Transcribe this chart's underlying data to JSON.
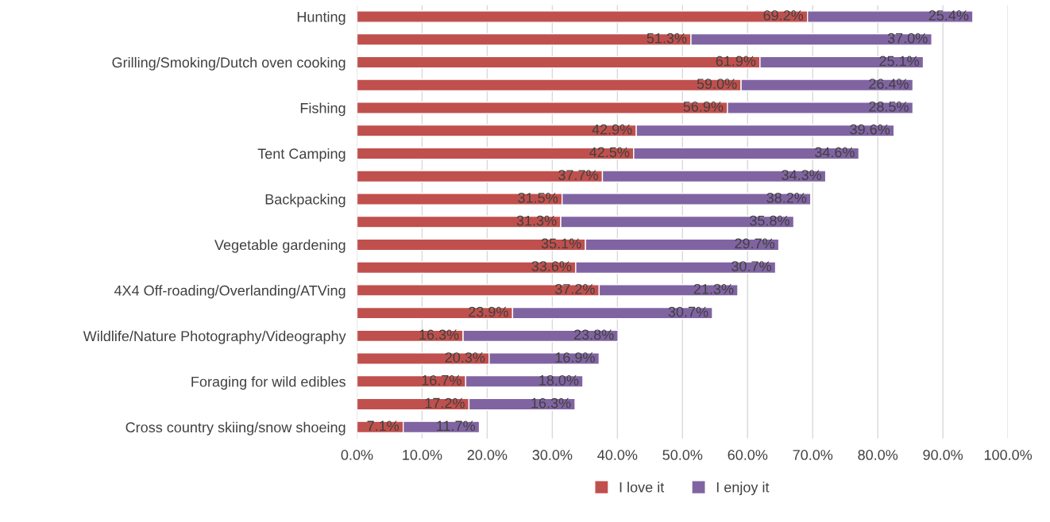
{
  "chart_data": {
    "type": "bar",
    "orientation": "horizontal",
    "stacked": true,
    "categories": [
      "Hunting",
      null,
      "Grilling/Smoking/Dutch oven cooking",
      null,
      "Fishing",
      null,
      "Tent Camping",
      null,
      "Backpacking",
      null,
      "Vegetable gardening",
      null,
      "4X4 Off-roading/Overlanding/ATVing",
      null,
      "Wildlife/Nature Photography/Videography",
      null,
      "Foraging for wild edibles",
      null,
      "Cross country skiing/snow shoeing"
    ],
    "series": [
      {
        "name": "I love it",
        "color": "#c0504d",
        "values": [
          69.2,
          51.3,
          61.9,
          59.0,
          56.9,
          42.9,
          42.5,
          37.7,
          31.5,
          31.3,
          35.1,
          33.6,
          37.2,
          23.9,
          16.3,
          20.3,
          16.7,
          17.2,
          7.1
        ],
        "value_labels": [
          "69.2%",
          "51.3%",
          "61.9%",
          "59.0%",
          "56.9%",
          "42.9%",
          "42.5%",
          "37.7%",
          "31.5%",
          "31.3%",
          "35.1%",
          "33.6%",
          "37.2%",
          "23.9%",
          "16.3%",
          "20.3%",
          "16.7%",
          "17.2%",
          "7.1%"
        ]
      },
      {
        "name": "I enjoy it",
        "color": "#8064a2",
        "values": [
          25.4,
          37.0,
          25.1,
          26.4,
          28.5,
          39.6,
          34.6,
          34.3,
          38.2,
          35.8,
          29.7,
          30.7,
          21.3,
          30.7,
          23.8,
          16.9,
          18.0,
          16.3,
          11.7
        ],
        "value_labels": [
          "25.4%",
          "37.0%",
          "25.1%",
          "26.4%",
          "28.5%",
          "39.6%",
          "34.6%",
          "34.3%",
          "38.2%",
          "35.8%",
          "29.7%",
          "30.7%",
          "21.3%",
          "30.7%",
          "23.8%",
          "16.9%",
          "18.0%",
          "16.3%",
          "11.7%"
        ]
      }
    ],
    "xlim": [
      0,
      100
    ],
    "xticks": [
      {
        "value": 0,
        "label": "0.0%"
      },
      {
        "value": 10,
        "label": "10.0%"
      },
      {
        "value": 20,
        "label": "20.0%"
      },
      {
        "value": 30,
        "label": "30.0%"
      },
      {
        "value": 40,
        "label": "40.0%"
      },
      {
        "value": 50,
        "label": "50.0%"
      },
      {
        "value": 60,
        "label": "60.0%"
      },
      {
        "value": 70,
        "label": "70.0%"
      },
      {
        "value": 80,
        "label": "80.0%"
      },
      {
        "value": 90,
        "label": "90.0%"
      },
      {
        "value": 100,
        "label": "100.0%"
      }
    ],
    "grid": "x",
    "legend": "bottom"
  }
}
